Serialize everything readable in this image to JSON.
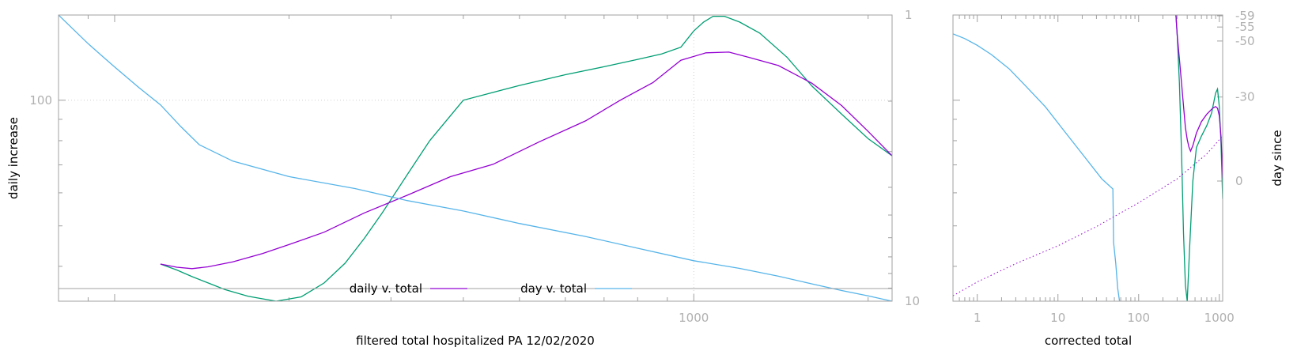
{
  "chart_data": [
    {
      "type": "line",
      "xlabel": "filtered total hospitalized PA 12/02/2020",
      "ylabel": "daily increase",
      "y2label": "",
      "xscale": "log",
      "yscale": "log",
      "y2scale": "log",
      "xlim": [
        80,
        2200
      ],
      "ylim": [
        33,
        160
      ],
      "y2lim": [
        1,
        10
      ],
      "y2reversed": true,
      "x_tick_labels": [
        {
          "value": 1000,
          "label": "1000"
        }
      ],
      "y_tick_labels": [
        {
          "value": 100,
          "label": "100"
        }
      ],
      "y2_tick_labels": [
        {
          "value": 1,
          "label": "1"
        },
        {
          "value": 10,
          "label": "10"
        }
      ],
      "grid": {
        "x": [
          1000
        ],
        "y": [
          100
        ]
      },
      "legend": {
        "placement": "bottom-center",
        "entries": [
          {
            "label": "daily v. total",
            "color": "#9400d3"
          },
          {
            "label": "day v. total",
            "color": "#56b4e9"
          }
        ]
      },
      "series": [
        {
          "color": "#009e73",
          "axis": "y",
          "x": [
            120,
            128,
            136,
            145,
            155,
            170,
            190,
            210,
            230,
            250,
            270,
            290,
            320,
            350,
            400,
            500,
            600,
            700,
            800,
            880,
            950,
            1000,
            1040,
            1080,
            1130,
            1200,
            1300,
            1450,
            1600,
            1800,
            2000,
            2200
          ],
          "y": [
            40.5,
            39.2,
            37.8,
            36.5,
            35.2,
            33.9,
            33.0,
            33.8,
            36.5,
            40.7,
            46.7,
            53.8,
            66.3,
            80.0,
            100.0,
            108.5,
            115.1,
            120.3,
            125.3,
            129.1,
            134.0,
            146.5,
            153.9,
            158.9,
            158.9,
            153.9,
            144.8,
            126.6,
            108.1,
            92.6,
            80.9,
            73.6
          ]
        },
        {
          "color": "#9400d3",
          "axis": "y",
          "x": [
            120,
            128,
            136,
            145,
            160,
            180,
            200,
            230,
            270,
            320,
            380,
            450,
            540,
            650,
            750,
            850,
            950,
            1050,
            1150,
            1250,
            1400,
            1600,
            1800,
            2000,
            2200
          ],
          "y": [
            40.5,
            39.8,
            39.5,
            39.9,
            41.0,
            42.9,
            45.1,
            48.3,
            53.7,
            59.2,
            65.6,
            70.2,
            79.4,
            89.2,
            100.4,
            110.2,
            124.7,
            129.9,
            130.4,
            126.5,
            121.1,
            109.8,
            97.1,
            84.2,
            73.6
          ]
        },
        {
          "color": "#56b4e9",
          "axis": "y2",
          "x": [
            80,
            90,
            100,
            110,
            120,
            130,
            140,
            160,
            200,
            260,
            320,
            400,
            500,
            650,
            800,
            1000,
            1200,
            1400,
            1600,
            1800,
            2000,
            2200
          ],
          "y": [
            1.0,
            1.26,
            1.52,
            1.79,
            2.06,
            2.45,
            2.84,
            3.24,
            3.67,
            4.04,
            4.45,
            4.84,
            5.35,
            5.94,
            6.53,
            7.22,
            7.68,
            8.18,
            8.7,
            9.18,
            9.58,
            10.0
          ]
        }
      ]
    },
    {
      "type": "line",
      "xlabel": "corrected total",
      "ylabel": "",
      "y2label": "day since",
      "xscale": "log",
      "yscale": "log",
      "xlim": [
        0.5,
        1100
      ],
      "ylim": [
        33,
        160
      ],
      "y2lim": [
        -59,
        0
      ],
      "x_tick_labels": [
        {
          "value": 1,
          "label": "1"
        },
        {
          "value": 10,
          "label": "10"
        },
        {
          "value": 100,
          "label": "100"
        },
        {
          "value": 1000,
          "label": "1000"
        }
      ],
      "y2_tick_labels": [
        {
          "value": -59,
          "label": "-59"
        },
        {
          "value": -55,
          "label": "-55"
        },
        {
          "value": -50,
          "label": "-50"
        },
        {
          "value": -30,
          "label": "-30"
        },
        {
          "value": 0,
          "label": "0"
        }
      ],
      "series": [
        {
          "color": "#56b4e9",
          "x": [
            0.5,
            0.7,
            1.0,
            1.5,
            2.5,
            4,
            7,
            12,
            20,
            35,
            48,
            49,
            52,
            55,
            58
          ],
          "y": [
            144.2,
            140.5,
            135.4,
            128.6,
            118.8,
            108.1,
            96.4,
            84.3,
            74.4,
            64.8,
            61.3,
            45.6,
            40.7,
            35.4,
            33.0
          ]
        },
        {
          "color": "#009e73",
          "x": [
            290,
            300,
            320,
            340,
            360,
            380,
            400,
            430,
            470,
            520,
            600,
            700,
            800,
            850,
            900,
            950,
            1000,
            1050,
            1100
          ],
          "y": [
            160,
            145.2,
            110.0,
            75.0,
            48.0,
            36.0,
            33.0,
            45.0,
            64.0,
            77.0,
            82.0,
            87.0,
            93.0,
            98.5,
            104.0,
            106.4,
            96.4,
            79.0,
            58.0
          ]
        },
        {
          "color": "#9400d3",
          "x": [
            290,
            300,
            320,
            340,
            360,
            380,
            400,
            420,
            440,
            470,
            520,
            600,
            700,
            800,
            850,
            900,
            950,
            1000,
            1050,
            1100
          ],
          "y": [
            160,
            144.2,
            125.6,
            110.0,
            96.9,
            86.0,
            80.5,
            77.3,
            75.5,
            77.8,
            83.4,
            88.8,
            92.6,
            95.1,
            96.0,
            96.5,
            95.7,
            91.7,
            81.8,
            65.0
          ]
        },
        {
          "color": "#9400d3",
          "dashed": true,
          "x": [
            0.5,
            1,
            3,
            10,
            30,
            100,
            300,
            700,
            1100
          ],
          "y": [
            34.0,
            36.7,
            40.6,
            44.8,
            49.8,
            56.8,
            64.8,
            74.4,
            82.1
          ]
        }
      ]
    }
  ]
}
